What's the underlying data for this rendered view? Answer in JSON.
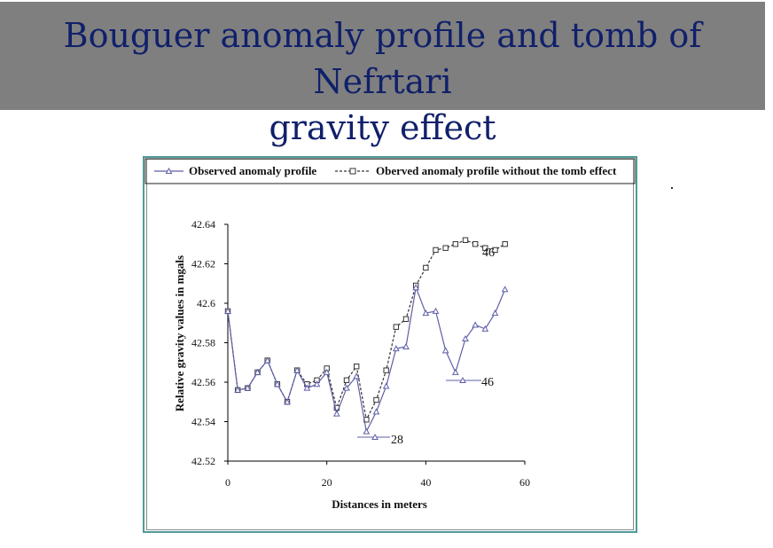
{
  "slide": {
    "title": "Bouguer anomaly profile and tomb of Nefrtari\ngravity effect"
  },
  "colors": {
    "title_bar": "#7f7f7f",
    "title_text": "#10206a",
    "frame": "#4f9a9a",
    "observed": "#5e5ea8",
    "without_tomb": "#333333"
  },
  "chart_data": {
    "type": "line",
    "title": "",
    "xlabel": "Distances in meters",
    "ylabel": "Relative gravity values in mgals",
    "xlim": [
      0,
      60
    ],
    "ylim": [
      42.52,
      42.64
    ],
    "xticks": [
      "0",
      "20",
      "40",
      "60"
    ],
    "yticks": [
      "42.52",
      "42.54",
      "42.56",
      "42.58",
      "42.6",
      "42.62",
      "42.64"
    ],
    "grid": false,
    "legend_position": "top",
    "series": [
      {
        "name": "Observed anomaly profile",
        "style": "solid",
        "marker": "triangle",
        "x": [
          0,
          2,
          4,
          6,
          8,
          10,
          12,
          14,
          16,
          18,
          20,
          22,
          24,
          26,
          28,
          30,
          32,
          34,
          36,
          38,
          40,
          42,
          44,
          46,
          48,
          50,
          52,
          54,
          56
        ],
        "y": [
          42.596,
          42.556,
          42.557,
          42.565,
          42.571,
          42.559,
          42.55,
          42.566,
          42.557,
          42.559,
          42.565,
          42.544,
          42.557,
          42.563,
          42.535,
          42.545,
          42.558,
          42.577,
          42.578,
          42.608,
          42.595,
          42.596,
          42.576,
          42.565,
          42.582,
          42.589,
          42.587,
          42.595,
          42.607
        ]
      },
      {
        "name": "Oberved anomaly profile without the tomb effect",
        "style": "dashed",
        "marker": "square",
        "x": [
          0,
          2,
          4,
          6,
          8,
          10,
          12,
          14,
          16,
          18,
          20,
          22,
          24,
          26,
          28,
          30,
          32,
          34,
          36,
          38,
          40,
          42,
          44,
          46,
          48,
          50,
          52,
          54,
          56
        ],
        "y": [
          42.596,
          42.556,
          42.557,
          42.565,
          42.571,
          42.559,
          42.55,
          42.566,
          42.559,
          42.561,
          42.567,
          42.547,
          42.561,
          42.568,
          42.541,
          42.551,
          42.566,
          42.588,
          42.592,
          42.609,
          42.618,
          42.627,
          42.628,
          42.63,
          42.632,
          42.63,
          42.628,
          42.627,
          42.63
        ]
      }
    ],
    "annotations": [
      {
        "text": "28",
        "x": 28,
        "y": 42.532
      },
      {
        "text": "46",
        "x": 46,
        "y": 42.561
      },
      {
        "text": "46",
        "x": 46,
        "y": 42.626
      }
    ]
  }
}
